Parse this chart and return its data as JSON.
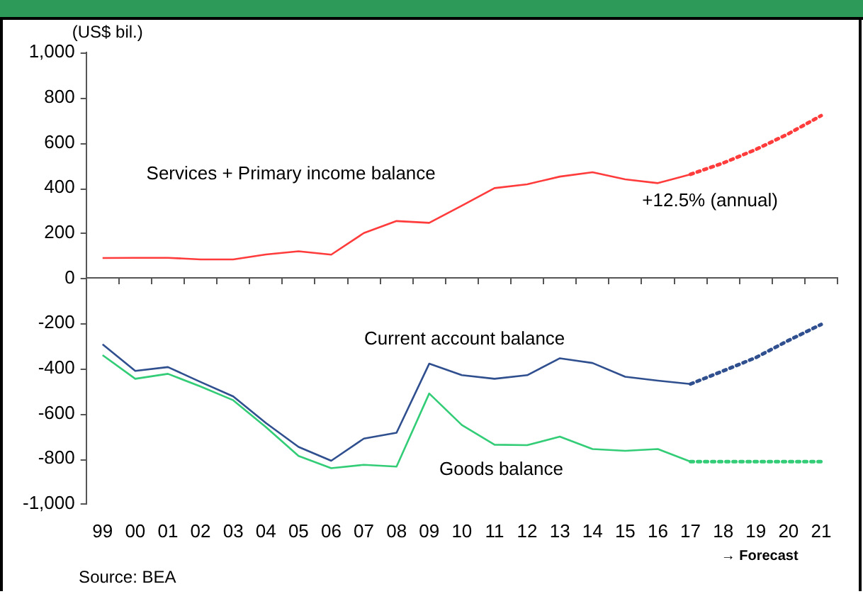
{
  "chart_data": {
    "type": "line",
    "ylabel": "(US$ bil.)",
    "categories": [
      "99",
      "00",
      "01",
      "02",
      "03",
      "04",
      "05",
      "06",
      "07",
      "08",
      "09",
      "10",
      "11",
      "12",
      "13",
      "14",
      "15",
      "16",
      "17",
      "18",
      "19",
      "20",
      "21"
    ],
    "series": [
      {
        "name": "Services + Primary income balance",
        "color": "#ff3b3b",
        "line_style": "solid",
        "values": [
          89,
          90,
          90,
          83,
          83,
          105,
          119,
          104,
          200,
          253,
          245,
          321,
          399,
          416,
          450,
          469,
          438,
          421,
          460,
          null,
          null,
          null,
          null
        ]
      },
      {
        "color": "#ff3b3b",
        "line_style": "dotted",
        "values": [
          null,
          null,
          null,
          null,
          null,
          null,
          null,
          null,
          null,
          null,
          null,
          null,
          null,
          null,
          null,
          null,
          null,
          null,
          460,
          510,
          570,
          640,
          720
        ]
      },
      {
        "name": "Current account balance",
        "color": "#2f4f8f",
        "line_style": "solid",
        "values": [
          -293,
          -411,
          -394,
          -460,
          -524,
          -642,
          -748,
          -809,
          -711,
          -685,
          -379,
          -430,
          -446,
          -430,
          -355,
          -376,
          -437,
          -454,
          -469,
          null,
          null,
          null,
          null
        ]
      },
      {
        "color": "#2f4f8f",
        "line_style": "dotted",
        "values": [
          null,
          null,
          null,
          null,
          null,
          null,
          null,
          null,
          null,
          null,
          null,
          null,
          null,
          null,
          null,
          null,
          null,
          null,
          -469,
          -411,
          -352,
          -276,
          -205
        ]
      },
      {
        "name": "Goods balance",
        "color": "#33cc77",
        "line_style": "solid",
        "values": [
          -341,
          -446,
          -424,
          -480,
          -541,
          -660,
          -788,
          -842,
          -827,
          -835,
          -511,
          -651,
          -738,
          -740,
          -702,
          -757,
          -765,
          -757,
          -813,
          null,
          null,
          null,
          null
        ]
      },
      {
        "color": "#33cc77",
        "line_style": "dotted",
        "values": [
          null,
          null,
          null,
          null,
          null,
          null,
          null,
          null,
          null,
          null,
          null,
          null,
          null,
          null,
          null,
          null,
          null,
          null,
          -813,
          -813,
          -813,
          -813,
          -813
        ]
      }
    ],
    "ylim": [
      -1000,
      1000
    ],
    "yticks": [
      {
        "value": -1000,
        "label": "-1,000"
      },
      -800,
      -600,
      -400,
      -200,
      0,
      200,
      400,
      600,
      800,
      {
        "value": 1000,
        "label": "1,000"
      }
    ],
    "ref_lines": [
      {
        "axis": "y",
        "value": 0,
        "color": "#555555"
      }
    ],
    "grid": false,
    "legend": false,
    "marker": "none",
    "annotations": [
      "+12.5% (annual)",
      "→ Forecast",
      "Source: BEA"
    ]
  }
}
